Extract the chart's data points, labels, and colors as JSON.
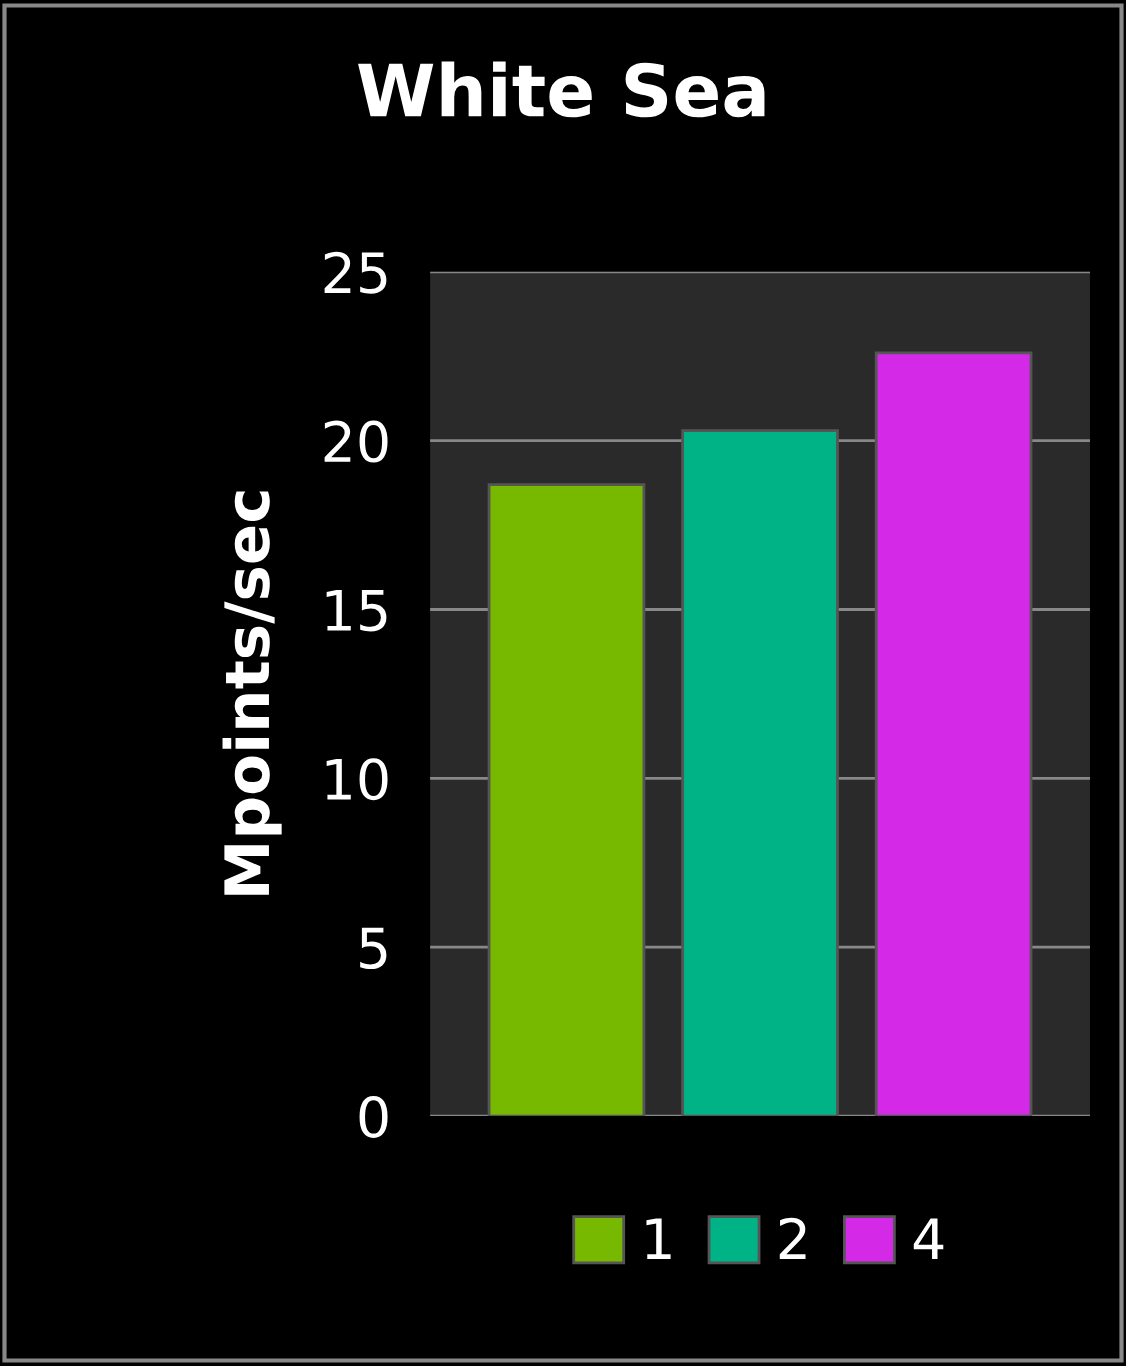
{
  "chart_data": {
    "type": "bar",
    "title": "White Sea",
    "ylabel": "Mpoints/sec",
    "categories": [
      null
    ],
    "series": [
      {
        "name": "1",
        "color": "#76b900",
        "values": [
          18.7
        ]
      },
      {
        "name": "2",
        "color": "#00b386",
        "values": [
          20.3
        ]
      },
      {
        "name": "4",
        "color": "#d42ae8",
        "values": [
          22.6
        ]
      }
    ],
    "ylim": [
      0,
      25
    ],
    "yticks": [
      0,
      5,
      10,
      15,
      20,
      25
    ],
    "grid": "y",
    "legend": "bottom"
  }
}
